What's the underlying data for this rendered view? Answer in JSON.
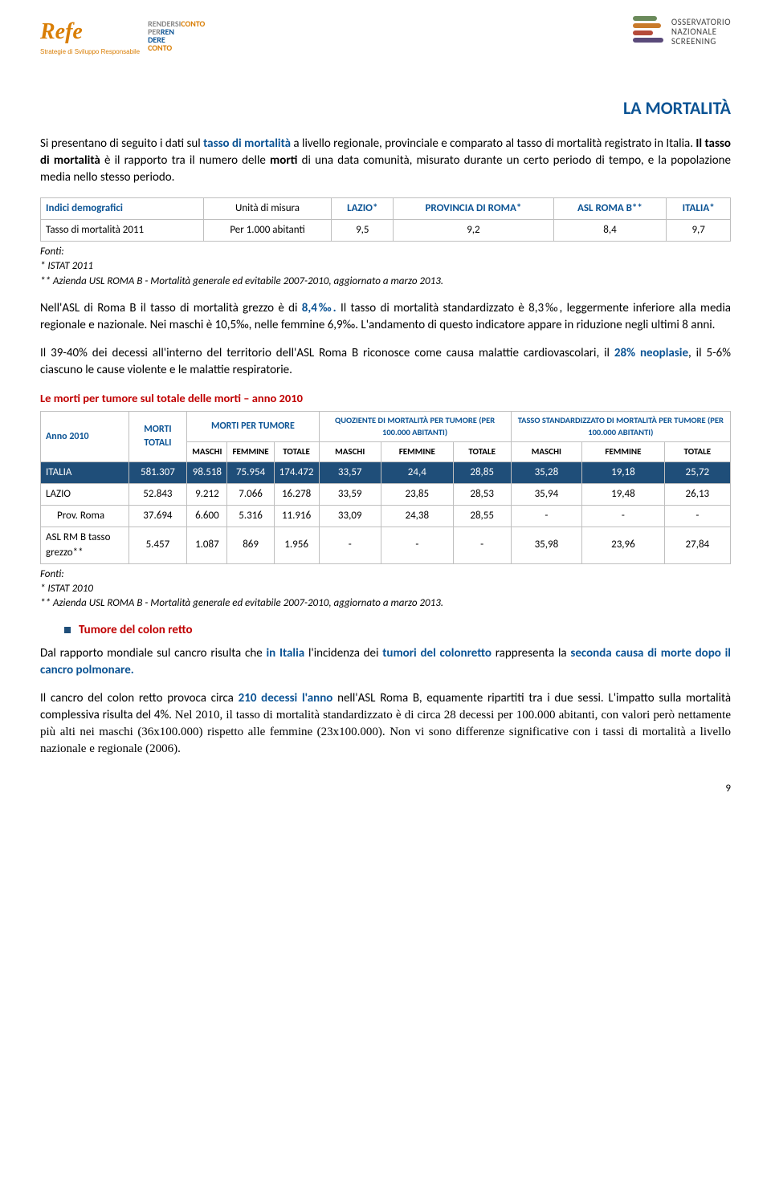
{
  "logos": {
    "refe": "Refe",
    "refe_sub": "Strategie di Sviluppo Responsabile",
    "osn_l1": "OSSERVATORIO",
    "osn_l2": "NAZIONALE",
    "osn_l3": "SCREENING"
  },
  "title": "LA MORTALITÀ",
  "p1_a": "Si presentano di seguito i dati sul ",
  "p1_hl": "tasso di mortalità",
  "p1_b": " a livello regionale, provinciale e comparato al tasso di mortalità registrato in Italia. ",
  "p1_c": "Il tasso di mortalità",
  "p1_d": " è il rapporto tra il numero delle ",
  "p1_e": "morti",
  "p1_f": " di una data comunità, misurato durante un certo periodo di tempo, e la popolazione media nello stesso periodo.",
  "table1": {
    "header_label": "Indici demografici",
    "cols": [
      "Unità di misura",
      "LAZIO*",
      "PROVINCIA DI ROMA*",
      "ASL ROMA B**",
      "ITALIA*"
    ],
    "row_label": "Tasso di mortalità 2011",
    "row_unit": "Per 1.000 abitanti",
    "row_vals": [
      "9,5",
      "9,2",
      "8,4",
      "9,7"
    ]
  },
  "fn1_a": "Fonti:",
  "fn1_b": "* ISTAT 2011",
  "fn1_c": "** Azienda USL ROMA B - Mortalità generale ed evitabile 2007-2010, aggiornato a marzo 2013.",
  "p2_a": "Nell'ASL di Roma B il tasso di mortalità grezzo è di ",
  "p2_hl": "8,4‰.",
  "p2_b": " Il tasso di mortalità standardizzato è 8,3‰, leggermente inferiore alla media regionale e nazionale. Nei maschi è 10,5‰, nelle femmine 6,9‰. L'andamento di questo indicatore appare in riduzione negli ultimi 8 anni.",
  "p3_a": "Il 39-40% dei decessi all'interno del territorio dell'ASL Roma B riconosce come causa malattie cardiovascolari, il ",
  "p3_hl": "28% neoplasie",
  "p3_b": ", il 5-6% ciascuno le cause violente e le malattie respiratorie.",
  "section2": "Le morti per tumore sul totale delle morti – anno 2010",
  "table2": {
    "h_anno": "Anno 2010",
    "h_morti": "MORTI TOTALI",
    "h_mpt": "MORTI PER TUMORE",
    "h_quo": "QUOZIENTE DI MORTALITÀ PER TUMORE (PER 100.000 ABITANTI)",
    "h_tasso": "TASSO STANDARDIZZATO DI MORTALITÀ PER TUMORE (PER 100.000 ABITANTI)",
    "sub": [
      "MASCHI",
      "FEMMINE",
      "TOTALE",
      "MASCHI",
      "FEMMINE",
      "TOTALE",
      "MASCHI",
      "FEMMINE",
      "TOTALE"
    ],
    "rows": [
      {
        "label": "ITALIA",
        "class": "row-italia",
        "cells": [
          "581.307",
          "98.518",
          "75.954",
          "174.472",
          "33,57",
          "24,4",
          "28,85",
          "35,28",
          "19,18",
          "25,72"
        ]
      },
      {
        "label": "LAZIO",
        "class": "",
        "cells": [
          "52.843",
          "9.212",
          "7.066",
          "16.278",
          "33,59",
          "23,85",
          "28,53",
          "35,94",
          "19,48",
          "26,13"
        ]
      },
      {
        "label": "Prov. Roma",
        "class": "indent-row",
        "cells": [
          "37.694",
          "6.600",
          "5.316",
          "11.916",
          "33,09",
          "24,38",
          "28,55",
          "-",
          "-",
          "-"
        ]
      },
      {
        "label": "ASL RM B tasso grezzo**",
        "class": "",
        "cells": [
          "5.457",
          "1.087",
          "869",
          "1.956",
          "-",
          "-",
          "-",
          "35,98",
          "23,96",
          "27,84"
        ]
      }
    ]
  },
  "fn2_a": "Fonti:",
  "fn2_b": "* ISTAT 2010",
  "fn2_c": "** Azienda USL ROMA B - Mortalità generale ed evitabile 2007-2010, aggiornato a marzo 2013.",
  "bullet": "Tumore del colon retto",
  "p4_a": "Dal rapporto mondiale sul cancro risulta che ",
  "p4_hl1": "in Italia",
  "p4_b": " l'incidenza dei ",
  "p4_hl2": "tumori del colonretto",
  "p4_c": " rappresenta la ",
  "p4_hl3": "seconda causa di morte dopo il cancro polmonare.",
  "p5_a": "Il cancro del colon retto provoca circa ",
  "p5_hl": "210 decessi l'anno",
  "p5_b": " nell'ASL Roma B, equamente ripartiti tra i due sessi. L'impatto sulla mortalità complessiva risulta del 4%. ",
  "p5_c": "Nel 2010, il tasso di mortalità standardizzato è di circa 28 decessi per 100.000 abitanti, con valori però nettamente più alti nei maschi (36x100.000) rispetto alle femmine (23x100.000). Non vi sono differenze significative con i tassi di mortalità a livello nazionale e regionale (2006).",
  "page_num": "9",
  "colors": {
    "blue": "#0b5394",
    "red": "#c00000",
    "darkblue": "#1f4e79",
    "orange": "#d97e05"
  }
}
